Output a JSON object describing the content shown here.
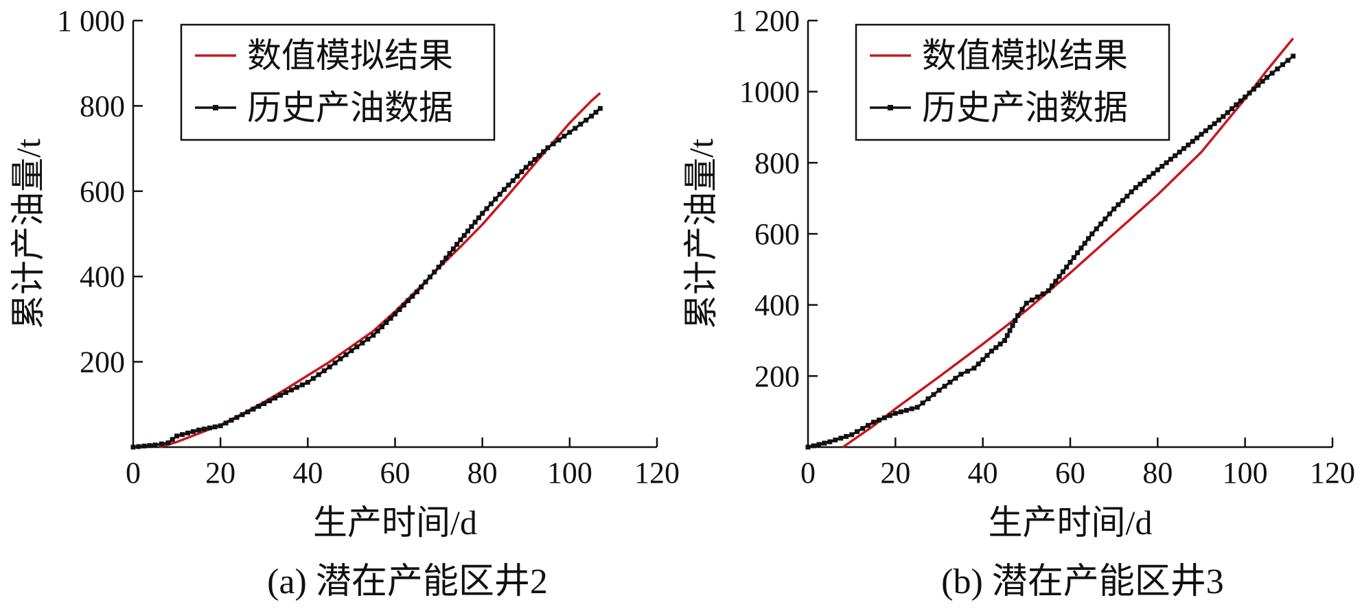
{
  "chart_data": [
    {
      "type": "line",
      "caption": "(a) 潜在产能区井2",
      "xlabel": "生产时间/d",
      "ylabel": "累计产油量/t",
      "xlim": [
        0,
        120
      ],
      "ylim": [
        0,
        1000
      ],
      "xticks": [
        0,
        20,
        40,
        60,
        80,
        100,
        120
      ],
      "yticks": [
        200,
        400,
        600,
        800,
        1000
      ],
      "xtick_labels": [
        "0",
        "20",
        "40",
        "60",
        "80",
        "100",
        "120"
      ],
      "ytick_labels": [
        "200",
        "400",
        "600",
        "800",
        "1 000"
      ],
      "legend_position": "top-left",
      "series": [
        {
          "name": "数值模拟结果",
          "color": "#c8161d",
          "marker": "none",
          "x": [
            6,
            10,
            15,
            20,
            25,
            30,
            35,
            40,
            45,
            50,
            55,
            60,
            65,
            70,
            75,
            80,
            85,
            90,
            95,
            100,
            105,
            107
          ],
          "y": [
            0,
            12,
            32,
            52,
            78,
            106,
            136,
            168,
            200,
            236,
            272,
            318,
            368,
            420,
            470,
            522,
            580,
            640,
            700,
            760,
            812,
            830
          ]
        },
        {
          "name": "历史产油数据",
          "color": "#111111",
          "marker": "square",
          "x": [
            0,
            5,
            8,
            10,
            15,
            20,
            25,
            30,
            35,
            40,
            45,
            50,
            55,
            60,
            65,
            70,
            75,
            80,
            85,
            90,
            95,
            100,
            105,
            107
          ],
          "y": [
            0,
            5,
            10,
            26,
            40,
            50,
            76,
            102,
            128,
            152,
            188,
            226,
            262,
            312,
            364,
            422,
            486,
            548,
            604,
            656,
            702,
            738,
            776,
            794
          ]
        }
      ]
    },
    {
      "type": "line",
      "caption": "(b) 潜在产能区井3",
      "xlabel": "生产时间/d",
      "ylabel": "累计产油量/t",
      "xlim": [
        0,
        120
      ],
      "ylim": [
        0,
        1200
      ],
      "xticks": [
        0,
        20,
        40,
        60,
        80,
        100,
        120
      ],
      "yticks": [
        200,
        400,
        600,
        800,
        1000,
        1200
      ],
      "xtick_labels": [
        "0",
        "20",
        "40",
        "60",
        "80",
        "100",
        "120"
      ],
      "ytick_labels": [
        "200",
        "400",
        "600",
        "800",
        "1000",
        "1 200"
      ],
      "legend_position": "top-left",
      "series": [
        {
          "name": "数值模拟结果",
          "color": "#c8161d",
          "marker": "none",
          "x": [
            8,
            15,
            20,
            30,
            40,
            50,
            60,
            70,
            80,
            90,
            100,
            105,
            111
          ],
          "y": [
            0,
            60,
            108,
            198,
            290,
            385,
            490,
            600,
            710,
            830,
            980,
            1060,
            1150
          ]
        },
        {
          "name": "历史产油数据",
          "color": "#111111",
          "marker": "square",
          "x": [
            0,
            5,
            10,
            15,
            20,
            25,
            30,
            35,
            38,
            42,
            45,
            48,
            50,
            55,
            60,
            65,
            70,
            75,
            80,
            85,
            90,
            95,
            100,
            105,
            111
          ],
          "y": [
            0,
            15,
            35,
            70,
            95,
            112,
            160,
            205,
            222,
            270,
            300,
            370,
            405,
            440,
            520,
            600,
            670,
            730,
            780,
            830,
            880,
            930,
            985,
            1040,
            1100
          ]
        }
      ]
    }
  ]
}
